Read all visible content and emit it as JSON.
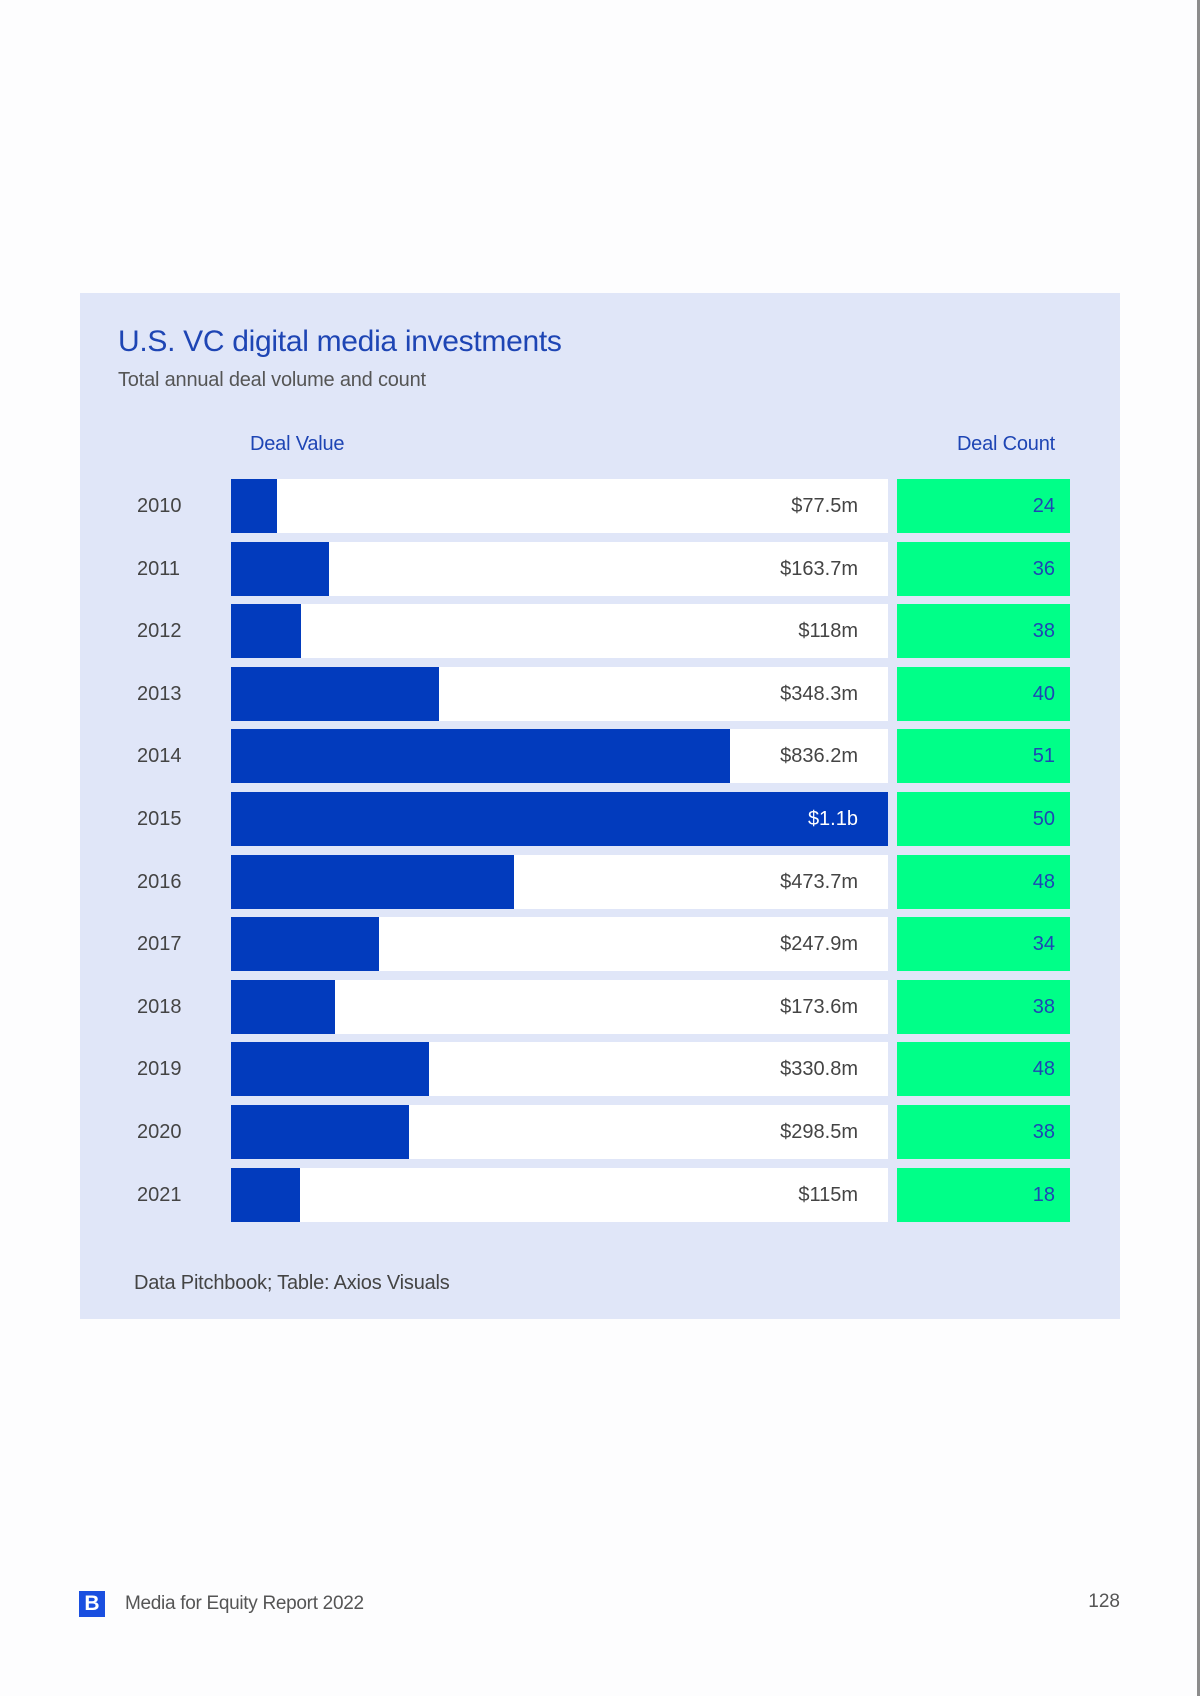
{
  "page": {
    "footer_title": "Media for Equity Report 2022",
    "logo_letter": "B",
    "page_number": "128"
  },
  "colors": {
    "bar": "#023bbd",
    "count_cell": "#00ff88",
    "accent_text": "#1e45b4",
    "panel_bg": "#e0e6f8"
  },
  "chart_data": {
    "type": "bar",
    "orientation": "horizontal",
    "title": "U.S. VC digital media investments",
    "subtitle": "Total annual deal volume and count",
    "column_headers": {
      "value": "Deal Value",
      "count": "Deal Count"
    },
    "categories": [
      "2010",
      "2011",
      "2012",
      "2013",
      "2014",
      "2015",
      "2016",
      "2017",
      "2018",
      "2019",
      "2020",
      "2021"
    ],
    "series": [
      {
        "name": "Deal Value",
        "unit": "$m",
        "values": [
          77.5,
          163.7,
          118,
          348.3,
          836.2,
          1100,
          473.7,
          247.9,
          173.6,
          330.8,
          298.5,
          115
        ],
        "labels": [
          "$77.5m",
          "$163.7m",
          "$118m",
          "$348.3m",
          "$836.2m",
          "$1.1b",
          "$473.7m",
          "$247.9m",
          "$173.6m",
          "$330.8m",
          "$298.5m",
          "$115m"
        ]
      },
      {
        "name": "Deal Count",
        "values": [
          24,
          36,
          38,
          40,
          51,
          50,
          48,
          34,
          38,
          48,
          38,
          18
        ]
      }
    ],
    "xlim": [
      0,
      1100
    ],
    "source": "Data Pitchbook; Table: Axios Visuals"
  }
}
